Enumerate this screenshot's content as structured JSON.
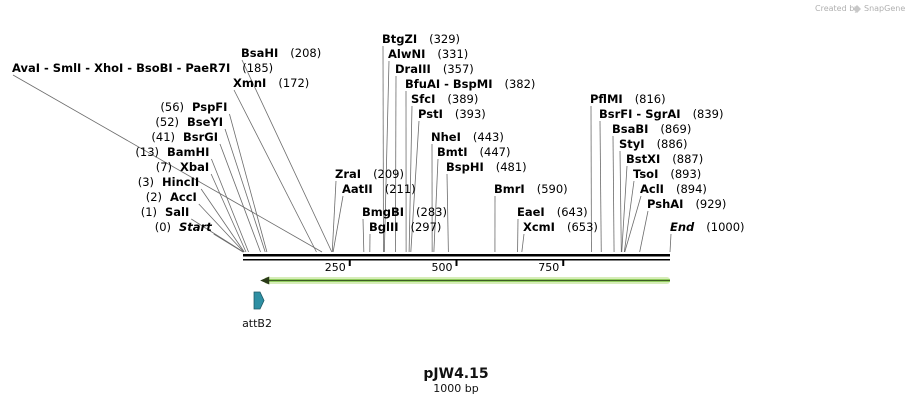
{
  "header": {
    "created_by": "Created by",
    "brand": "SnapGene"
  },
  "plasmid": {
    "name": "pJW4.15",
    "length_label": "1000 bp",
    "length": 1000
  },
  "features": [
    {
      "name": "attB2",
      "start": 27,
      "end": 46,
      "color": "#2e8fa3",
      "direction": "forward"
    }
  ],
  "orf": {
    "start": 45,
    "end": 1000,
    "direction": "reverse",
    "color": "#7ac143"
  },
  "ruler": {
    "ticks": [
      "250",
      "500",
      "750"
    ]
  },
  "sites": [
    {
      "pos": "(0)",
      "name": "Start",
      "italic": true
    },
    {
      "pos": "(1)",
      "name": "SalI"
    },
    {
      "pos": "(2)",
      "name": "AccI"
    },
    {
      "pos": "(3)",
      "name": "HincII"
    },
    {
      "pos": "(7)",
      "name": "XbaI"
    },
    {
      "pos": "(13)",
      "name": "BamHI"
    },
    {
      "pos": "(41)",
      "name": "BsrGI"
    },
    {
      "pos": "(52)",
      "name": "BseYI"
    },
    {
      "pos": "(56)",
      "name": "PspFI"
    },
    {
      "pos": "(172)",
      "name": "XmnI"
    },
    {
      "pos": "(208)",
      "name": "BsaHI"
    },
    {
      "pos": "(185)",
      "name": "AvaI - SmlI - XhoI - BsoBI - PaeR7I"
    },
    {
      "pos": "(209)",
      "name": "ZraI"
    },
    {
      "pos": "(211)",
      "name": "AatII"
    },
    {
      "pos": "(283)",
      "name": "BmgBI"
    },
    {
      "pos": "(297)",
      "name": "BglII"
    },
    {
      "pos": "(329)",
      "name": "BtgZI"
    },
    {
      "pos": "(331)",
      "name": "AlwNI"
    },
    {
      "pos": "(357)",
      "name": "DraIII"
    },
    {
      "pos": "(382)",
      "name": "BfuAI - BspMI"
    },
    {
      "pos": "(389)",
      "name": "SfcI"
    },
    {
      "pos": "(393)",
      "name": "PstI"
    },
    {
      "pos": "(443)",
      "name": "NheI"
    },
    {
      "pos": "(447)",
      "name": "BmtI"
    },
    {
      "pos": "(481)",
      "name": "BspHI"
    },
    {
      "pos": "(590)",
      "name": "BmrI"
    },
    {
      "pos": "(643)",
      "name": "EaeI"
    },
    {
      "pos": "(653)",
      "name": "XcmI"
    },
    {
      "pos": "(816)",
      "name": "PflMI"
    },
    {
      "pos": "(839)",
      "name": "BsrFI - SgrAI"
    },
    {
      "pos": "(869)",
      "name": "BsaBI"
    },
    {
      "pos": "(886)",
      "name": "StyI"
    },
    {
      "pos": "(887)",
      "name": "BstXI"
    },
    {
      "pos": "(893)",
      "name": "TsoI"
    },
    {
      "pos": "(894)",
      "name": "AclI"
    },
    {
      "pos": "(929)",
      "name": "PshAI"
    },
    {
      "pos": "(1000)",
      "name": "End",
      "italic": true
    }
  ]
}
